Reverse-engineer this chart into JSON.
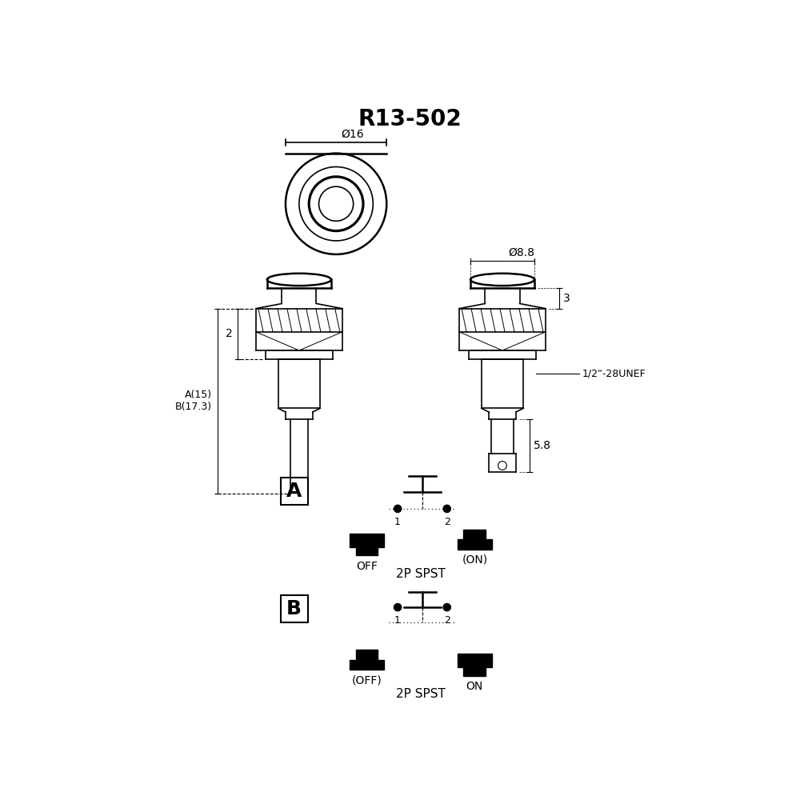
{
  "title": "R13-502",
  "bg_color": "#ffffff",
  "line_color": "#000000",
  "title_fontsize": 20,
  "dim16": "Ø16",
  "dim88": "Ø8.8",
  "label_2": "2",
  "label_3": "3",
  "label_A15": "A(15)",
  "label_B173": "B(17.3)",
  "label_58": "5.8",
  "label_thread": "1/2\"-28UNEF",
  "label_A": "A",
  "label_B": "B",
  "label_OFF": "OFF",
  "label_ON_A": "(ON)",
  "label_2P_SPST_A": "2P SPST",
  "label_OFF_B": "(OFF)",
  "label_ON_B": "ON",
  "label_2P_SPST_B": "2P SPST",
  "pin1": "1",
  "pin2": "2"
}
